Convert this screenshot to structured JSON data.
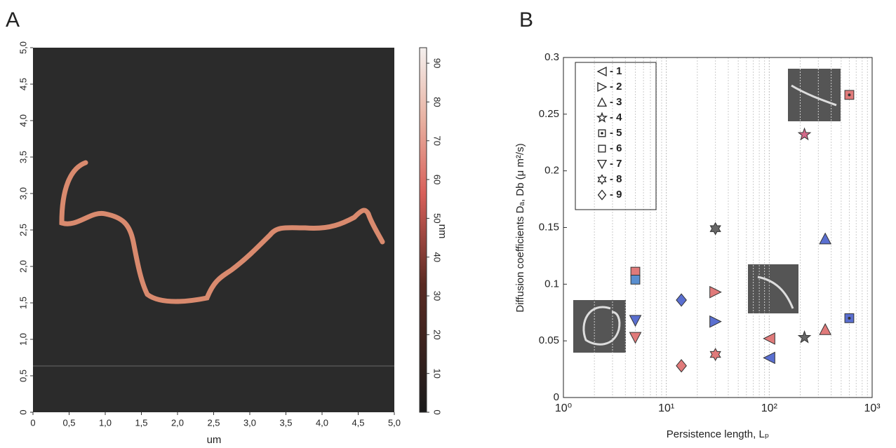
{
  "chart_data": [
    {
      "type": "image",
      "title": "A",
      "xlabel": "um",
      "xlim": [
        0,
        5
      ],
      "ylim": [
        0,
        5
      ],
      "xticks": [
        0,
        {
          "value": 0.5,
          "label": "0,5"
        },
        {
          "value": 1,
          "label": "1,0"
        },
        {
          "value": 1.5,
          "label": "1,5"
        },
        {
          "value": 2,
          "label": "2,0"
        },
        {
          "value": 2.5,
          "label": "2,5"
        },
        {
          "value": 3,
          "label": "3,0"
        },
        {
          "value": 3.5,
          "label": "3,5"
        },
        {
          "value": 4,
          "label": "4,0"
        },
        {
          "value": 4.5,
          "label": "4,5"
        },
        {
          "value": 5,
          "label": "5,0"
        }
      ],
      "yticks": [
        0,
        {
          "value": 0.5,
          "label": "0,5"
        },
        {
          "value": 1,
          "label": "1,0"
        },
        {
          "value": 1.5,
          "label": "1,5"
        },
        {
          "value": 2,
          "label": "2,0"
        },
        {
          "value": 2.5,
          "label": "2,5"
        },
        {
          "value": 3,
          "label": "3,0"
        },
        {
          "value": 3.5,
          "label": "3,5"
        },
        {
          "value": 4,
          "label": "4,0"
        },
        {
          "value": 4.5,
          "label": "4,5"
        },
        {
          "value": 5,
          "label": "5,0"
        }
      ],
      "colorbar": {
        "label": "nm",
        "lim": [
          0,
          94
        ],
        "ticks": [
          0,
          10,
          20,
          30,
          40,
          50,
          60,
          70,
          80,
          90
        ]
      }
    },
    {
      "type": "scatter",
      "title": "B",
      "xlabel": "Persistence length, Lₚ",
      "ylabel": "Diffusion coefficients Dₐ, Db (μ m²/s)",
      "xscale": "log",
      "xlim": [
        1,
        1000
      ],
      "ylim": [
        0,
        0.3
      ],
      "xticks": [
        {
          "value": 1,
          "label": "10⁰"
        },
        {
          "value": 10,
          "label": "10¹"
        },
        {
          "value": 100,
          "label": "10²"
        },
        {
          "value": 1000,
          "label": "10³"
        }
      ],
      "yticks": [
        0,
        0.05,
        0.1,
        0.15,
        0.2,
        0.25,
        0.3
      ],
      "grid": "x",
      "minor_grid": true,
      "series": [
        {
          "name": "- 1",
          "marker": "triangle-left",
          "x": [
            100,
            100
          ],
          "values": [
            0.052,
            0.035
          ],
          "colors": [
            "#e07a7a",
            "#5a6fd0"
          ]
        },
        {
          "name": "- 2",
          "marker": "triangle-right",
          "x": [
            30,
            30
          ],
          "values": [
            0.093,
            0.067
          ],
          "colors": [
            "#e07a7a",
            "#5a6fd0"
          ]
        },
        {
          "name": "- 3",
          "marker": "triangle-up",
          "x": [
            350,
            350
          ],
          "values": [
            0.06,
            0.14
          ],
          "colors": [
            "#e07a7a",
            "#5a6fd0"
          ]
        },
        {
          "name": "- 4",
          "marker": "star",
          "x": [
            220,
            220
          ],
          "values": [
            0.232,
            0.053
          ],
          "colors": [
            "#d46a8a",
            "#666666"
          ]
        },
        {
          "name": "- 5",
          "marker": "square-dot",
          "x": [
            600,
            600
          ],
          "values": [
            0.267,
            0.07
          ],
          "colors": [
            "#e07a7a",
            "#5a6fd0"
          ]
        },
        {
          "name": "- 6",
          "marker": "square",
          "x": [
            5,
            5
          ],
          "values": [
            0.111,
            0.104
          ],
          "colors": [
            "#e07a7a",
            "#5a8fd0"
          ]
        },
        {
          "name": "- 7",
          "marker": "triangle-down",
          "x": [
            5,
            5
          ],
          "values": [
            0.068,
            0.053
          ],
          "colors": [
            "#5a6fd0",
            "#e07a7a"
          ]
        },
        {
          "name": "- 8",
          "marker": "hexagram",
          "x": [
            30,
            30
          ],
          "values": [
            0.149,
            0.038
          ],
          "colors": [
            "#666666",
            "#e07a7a"
          ]
        },
        {
          "name": "- 9",
          "marker": "diamond",
          "x": [
            14,
            14
          ],
          "values": [
            0.086,
            0.028
          ],
          "colors": [
            "#5a6fd0",
            "#e07a7a"
          ]
        }
      ]
    }
  ]
}
